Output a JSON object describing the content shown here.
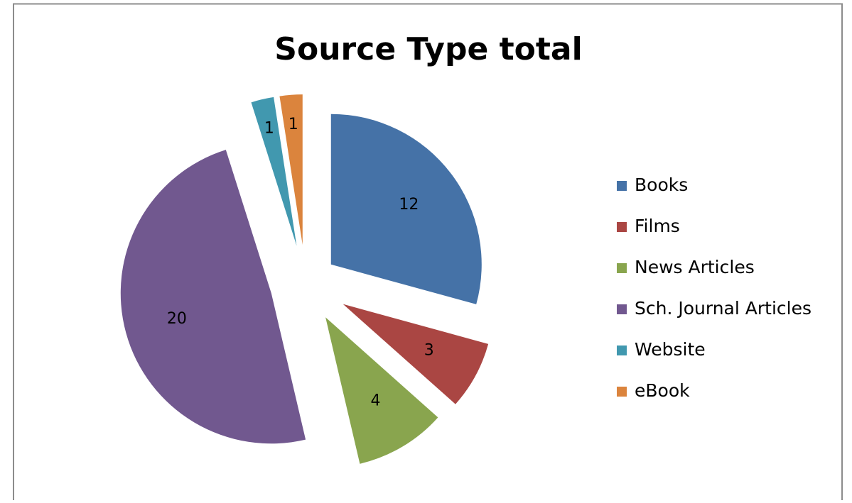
{
  "chart_data": {
    "type": "pie",
    "title": "Source Type total",
    "categories": [
      "Books",
      "Films",
      "News Articles",
      "Sch. Journal Articles",
      "Website",
      "eBook"
    ],
    "values": [
      12,
      3,
      4,
      20,
      1,
      1
    ],
    "colors": [
      "#4572a7",
      "#aa4643",
      "#89a54e",
      "#71588f",
      "#4198af",
      "#db843d"
    ],
    "legend": "right"
  }
}
